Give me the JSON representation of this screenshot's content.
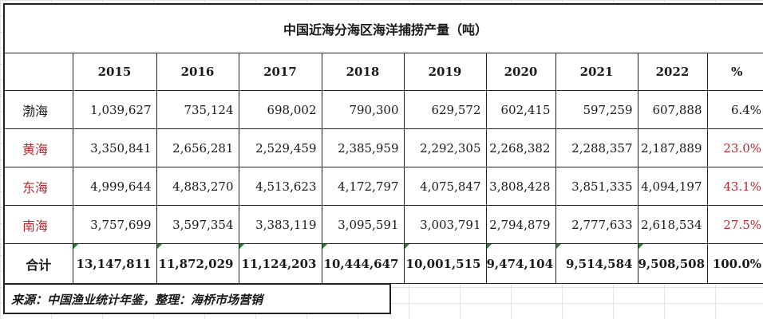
{
  "title": "中国近海分海区海洋捕捞产量（吨）",
  "headers": [
    "",
    "2015",
    "2016",
    "2017",
    "2018",
    "2019",
    "2020",
    "2021",
    "2022",
    "%"
  ],
  "rows": [
    {
      "label": "渤海",
      "values": [
        "1,039,627",
        "735,124",
        "698,002",
        "790,300",
        "629,572",
        "602,415",
        "597,259",
        "607,888"
      ],
      "pct": "6.4%",
      "highlight": false
    },
    {
      "label": "黄海",
      "values": [
        "3,350,841",
        "2,656,281",
        "2,529,459",
        "2,385,959",
        "2,292,305",
        "2,268,382",
        "2,288,357",
        "2,187,889"
      ],
      "pct": "23.0%",
      "highlight": true
    },
    {
      "label": "东海",
      "values": [
        "4,999,644",
        "4,883,270",
        "4,513,623",
        "4,172,797",
        "4,075,847",
        "3,808,428",
        "3,851,335",
        "4,094,197"
      ],
      "pct": "43.1%",
      "highlight": true
    },
    {
      "label": "南海",
      "values": [
        "3,757,699",
        "3,597,354",
        "3,383,119",
        "3,095,591",
        "3,003,791",
        "2,794,879",
        "2,777,633",
        "2,618,534"
      ],
      "pct": "27.5%",
      "highlight": true
    }
  ],
  "total": {
    "label": "合计",
    "values": [
      "13,147,811",
      "11,872,029",
      "11,124,203",
      "10,444,647",
      "10,001,515",
      "9,474,104",
      "9,514,584",
      "9,508,508"
    ],
    "pct": "100.0%"
  },
  "source": "来源：中国渔业统计年鉴，整理：海桥市场营销",
  "colors": {
    "highlight_text": "#c0282d",
    "marker": "#2e7d32"
  }
}
